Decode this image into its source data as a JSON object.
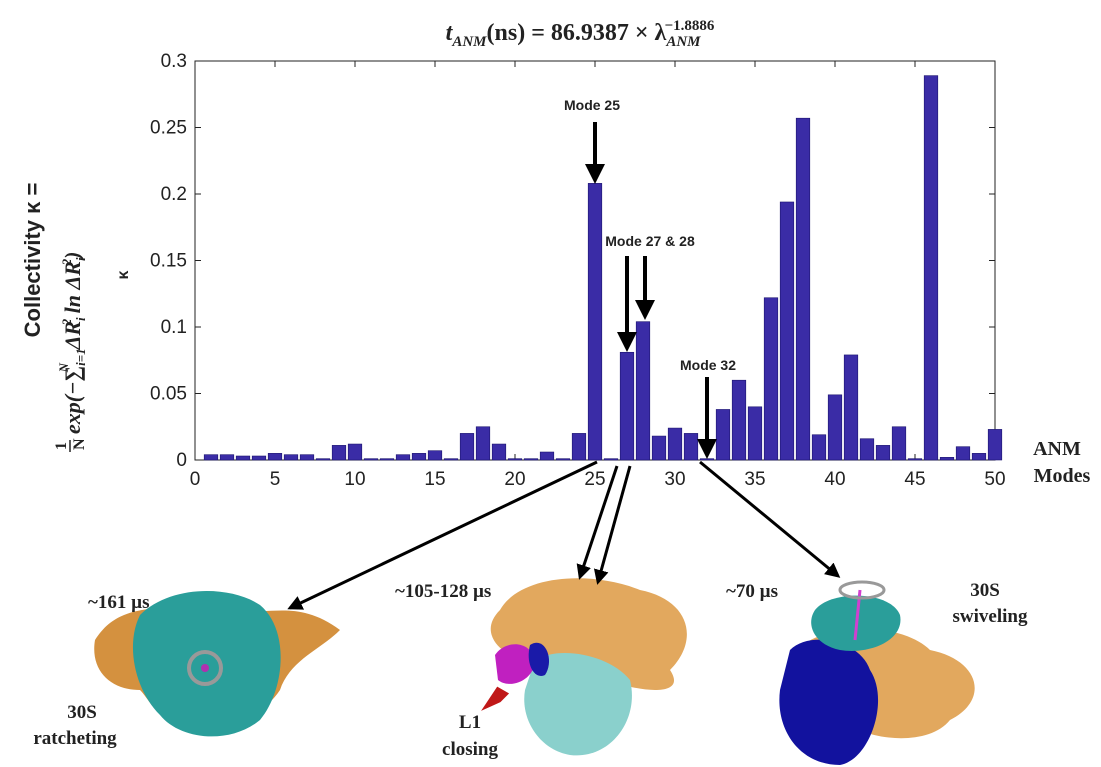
{
  "chart_data": {
    "type": "bar",
    "title": {
      "parts": [
        "t",
        "ANM",
        "(ns) = 86.9387 × λ",
        "ANM",
        "−1.8886"
      ]
    },
    "ylabel": {
      "line1": "Collectivity κ =",
      "fraction": [
        "1",
        "N"
      ],
      "parts": [
        "exp(−∑",
        "i=1",
        "N",
        " ΔR",
        "i",
        "2",
        " ln ΔR",
        "i",
        "2",
        ")"
      ]
    },
    "yaxis_symbol": "κ",
    "xlabel": [
      "ANM",
      "Modes"
    ],
    "categories": [
      1,
      2,
      3,
      4,
      5,
      6,
      7,
      8,
      9,
      10,
      11,
      12,
      13,
      14,
      15,
      16,
      17,
      18,
      19,
      20,
      21,
      22,
      23,
      24,
      25,
      26,
      27,
      28,
      29,
      30,
      31,
      32,
      33,
      34,
      35,
      36,
      37,
      38,
      39,
      40,
      41,
      42,
      43,
      44,
      45,
      46,
      47,
      48,
      49,
      50
    ],
    "values": [
      0.004,
      0.004,
      0.003,
      0.003,
      0.005,
      0.004,
      0.004,
      0.001,
      0.011,
      0.012,
      0.001,
      0.001,
      0.004,
      0.005,
      0.007,
      0.001,
      0.02,
      0.025,
      0.012,
      0.001,
      0.001,
      0.006,
      0.001,
      0.02,
      0.208,
      0.001,
      0.081,
      0.104,
      0.018,
      0.024,
      0.02,
      0.001,
      0.038,
      0.06,
      0.04,
      0.122,
      0.194,
      0.257,
      0.019,
      0.049,
      0.079,
      0.016,
      0.011,
      0.025,
      0.001,
      0.289,
      0.002,
      0.01,
      0.005,
      0.023
    ],
    "color": "#3a2ca6",
    "xlim": [
      0,
      50
    ],
    "xticks": [
      0,
      5,
      10,
      15,
      20,
      25,
      30,
      35,
      40,
      45,
      50
    ],
    "ylim": [
      0,
      0.3
    ],
    "yticks": [
      0,
      0.05,
      0.1,
      0.15,
      0.2,
      0.25,
      0.3
    ],
    "grid": false,
    "annotations": [
      "Mode 25",
      "Mode 27 & 28",
      "Mode 32"
    ],
    "panels": [
      {
        "time": "~161 µs",
        "caption": [
          "30S",
          "ratcheting"
        ]
      },
      {
        "time": "~105-128 µs",
        "caption": [
          "L1",
          "closing"
        ]
      },
      {
        "time": "~70 µs",
        "caption": [
          "30S",
          "swiveling"
        ]
      }
    ]
  }
}
